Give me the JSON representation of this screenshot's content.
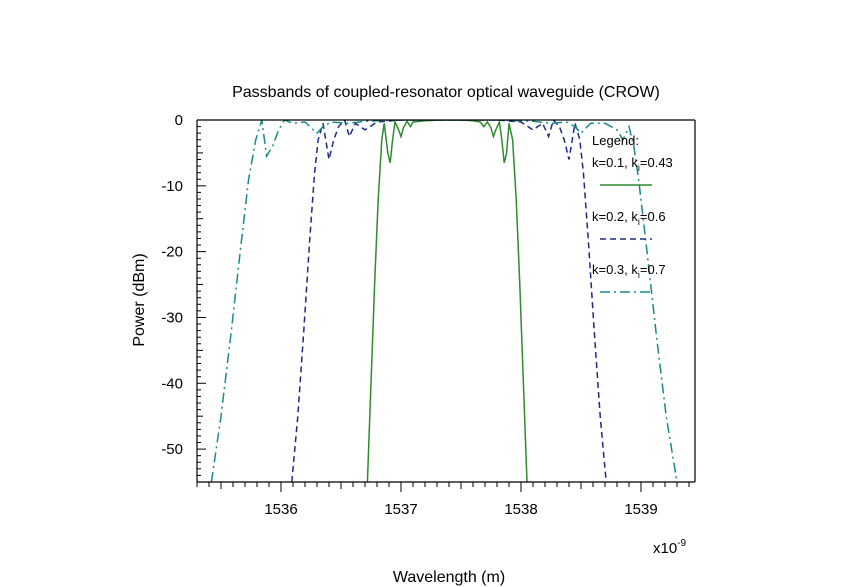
{
  "chart_data": {
    "type": "line",
    "title": "Passbands of coupled-resonator optical waveguide (CROW)",
    "xlabel": "Wavelength (m)",
    "ylabel": "Power (dBm)",
    "x_multiplier_label": "x10",
    "x_multiplier_exponent": "-9",
    "xlim": [
      1535.3,
      1539.45
    ],
    "ylim": [
      -55,
      0
    ],
    "xticks": [
      1536,
      1537,
      1538,
      1539
    ],
    "xtick_labels": [
      "1536",
      "1537",
      "1538",
      "1539"
    ],
    "yticks": [
      0,
      -10,
      -20,
      -30,
      -40,
      -50
    ],
    "ytick_labels": [
      "0",
      "-10",
      "-20",
      "-30",
      "-40",
      "-50"
    ],
    "legend": {
      "title": "Legend:",
      "placement": "top-right",
      "entries": [
        {
          "label_main": "k=0.1, k",
          "label_sub": "i",
          "label_rest": "=0.43"
        },
        {
          "label_main": "k=0.2, k",
          "label_sub": "i",
          "label_rest": "=0.6"
        },
        {
          "label_main": "k=0.3, k",
          "label_sub": "i",
          "label_rest": "=0.7"
        }
      ]
    },
    "series": [
      {
        "color": "#2e8b2e",
        "dash": "solid",
        "points": [
          [
            1536.72,
            -55
          ],
          [
            1536.75,
            -40
          ],
          [
            1536.78,
            -25
          ],
          [
            1536.81,
            -12
          ],
          [
            1536.84,
            -3
          ],
          [
            1536.86,
            -0.5
          ],
          [
            1536.89,
            -5
          ],
          [
            1536.91,
            -6.5
          ],
          [
            1536.93,
            -3
          ],
          [
            1536.95,
            -0.3
          ],
          [
            1536.98,
            -1.5
          ],
          [
            1537.0,
            -2.5
          ],
          [
            1537.02,
            -1.2
          ],
          [
            1537.05,
            -0.2
          ],
          [
            1537.08,
            -1.0
          ],
          [
            1537.1,
            -0.3
          ],
          [
            1537.2,
            -0.1
          ],
          [
            1537.35,
            0
          ],
          [
            1537.5,
            0
          ],
          [
            1537.6,
            -0.1
          ],
          [
            1537.66,
            -0.3
          ],
          [
            1537.69,
            -1.0
          ],
          [
            1537.72,
            -0.3
          ],
          [
            1537.75,
            -1.2
          ],
          [
            1537.77,
            -2.5
          ],
          [
            1537.79,
            -1.5
          ],
          [
            1537.82,
            -0.3
          ],
          [
            1537.84,
            -3
          ],
          [
            1537.86,
            -6.5
          ],
          [
            1537.88,
            -5
          ],
          [
            1537.9,
            -0.5
          ],
          [
            1537.93,
            -3
          ],
          [
            1537.96,
            -12
          ],
          [
            1537.99,
            -25
          ],
          [
            1538.02,
            -40
          ],
          [
            1538.05,
            -55
          ]
        ]
      },
      {
        "color": "#1f2a80",
        "dash": "6,4",
        "points": [
          [
            1536.09,
            -55
          ],
          [
            1536.14,
            -45
          ],
          [
            1536.19,
            -32
          ],
          [
            1536.24,
            -18
          ],
          [
            1536.28,
            -8
          ],
          [
            1536.31,
            -3
          ],
          [
            1536.35,
            -0.5
          ],
          [
            1536.4,
            -6
          ],
          [
            1536.44,
            -3
          ],
          [
            1536.48,
            -1
          ],
          [
            1536.53,
            0
          ],
          [
            1536.57,
            -2.5
          ],
          [
            1536.62,
            -0.5
          ],
          [
            1536.7,
            -1.5
          ],
          [
            1536.8,
            -0.3
          ],
          [
            1537.0,
            0
          ],
          [
            1537.2,
            0
          ],
          [
            1537.4,
            0
          ],
          [
            1537.6,
            0
          ],
          [
            1537.8,
            0
          ],
          [
            1538.0,
            -0.3
          ],
          [
            1538.1,
            -1.5
          ],
          [
            1538.18,
            -0.5
          ],
          [
            1538.23,
            -2.5
          ],
          [
            1538.27,
            0
          ],
          [
            1538.32,
            -1
          ],
          [
            1538.36,
            -3
          ],
          [
            1538.4,
            -6
          ],
          [
            1538.45,
            -0.5
          ],
          [
            1538.49,
            -3
          ],
          [
            1538.52,
            -8
          ],
          [
            1538.56,
            -18
          ],
          [
            1538.61,
            -32
          ],
          [
            1538.66,
            -45
          ],
          [
            1538.71,
            -55
          ]
        ]
      },
      {
        "color": "#1a8a8a",
        "dash": "10,4,2,4",
        "points": [
          [
            1535.42,
            -55
          ],
          [
            1535.5,
            -45
          ],
          [
            1535.58,
            -33
          ],
          [
            1535.66,
            -20
          ],
          [
            1535.73,
            -9
          ],
          [
            1535.79,
            -3
          ],
          [
            1535.84,
            0
          ],
          [
            1535.88,
            -5.5
          ],
          [
            1535.93,
            -4
          ],
          [
            1535.98,
            -1.5
          ],
          [
            1536.03,
            0
          ],
          [
            1536.1,
            -0.5
          ],
          [
            1536.2,
            -0.3
          ],
          [
            1536.3,
            -2
          ],
          [
            1536.35,
            -1
          ],
          [
            1536.42,
            -0.3
          ],
          [
            1536.55,
            -0.5
          ],
          [
            1536.7,
            -0.2
          ],
          [
            1537.0,
            0
          ],
          [
            1537.4,
            0
          ],
          [
            1537.8,
            0
          ],
          [
            1538.1,
            -0.2
          ],
          [
            1538.25,
            -0.5
          ],
          [
            1538.38,
            -0.3
          ],
          [
            1538.45,
            -1
          ],
          [
            1538.5,
            -2
          ],
          [
            1538.58,
            -0.5
          ],
          [
            1538.7,
            -0.5
          ],
          [
            1538.8,
            -1.5
          ],
          [
            1538.85,
            -3
          ],
          [
            1538.9,
            -1
          ],
          [
            1538.94,
            -4
          ],
          [
            1538.98,
            -9
          ],
          [
            1539.05,
            -20
          ],
          [
            1539.13,
            -33
          ],
          [
            1539.21,
            -45
          ],
          [
            1539.3,
            -55
          ]
        ]
      }
    ]
  }
}
